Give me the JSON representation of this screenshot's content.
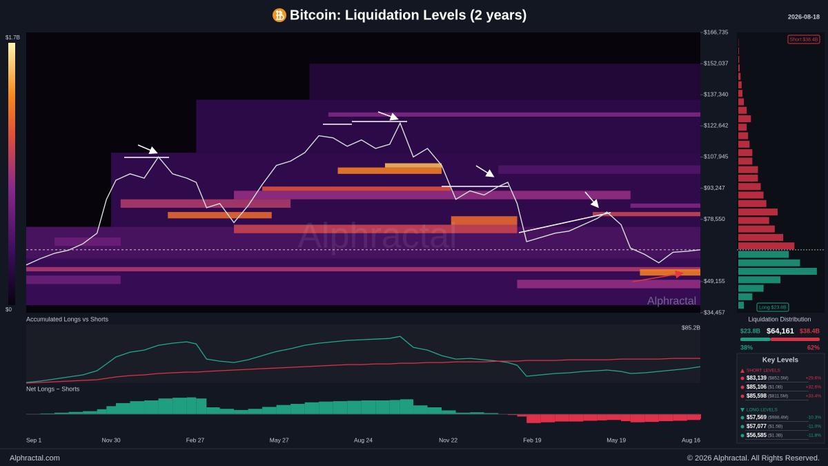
{
  "header": {
    "title": "Bitcoin: Liquidation Levels (2 years)",
    "date": "2026-08-18"
  },
  "watermark": "Alphractal",
  "footer": {
    "left": "Alphractal.com",
    "right": "© 2026 Alphractal. All Rights Reserved."
  },
  "chart_data": [
    {
      "type": "heatmap",
      "xlim": [
        0,
        714
      ],
      "ylim": [
        34457,
        166735
      ],
      "yticks": [
        {
          "value": 34457,
          "label": "$34,457"
        },
        {
          "value": 49155,
          "label": "$49,155"
        },
        {
          "value": 78550,
          "label": "$78,550"
        },
        {
          "value": 93247,
          "label": "$93,247"
        },
        {
          "value": 107945,
          "label": "$107,945"
        },
        {
          "value": 122642,
          "label": "$122,642"
        },
        {
          "value": 137340,
          "label": "$137,340"
        },
        {
          "value": 152037,
          "label": "$152,037"
        },
        {
          "value": 166735,
          "label": "$166,735"
        }
      ],
      "zlim": [
        0,
        1.7
      ],
      "zticks": [
        {
          "value": 0,
          "label": "$0"
        },
        {
          "value": 1.7,
          "label": "$1.7B"
        }
      ],
      "current_price": 64161,
      "bands": [
        {
          "x": [
            0,
            714
          ],
          "y": [
            38000,
            60000
          ],
          "z": 0.35
        },
        {
          "x": [
            0,
            714
          ],
          "y": [
            60000,
            75000
          ],
          "z": 0.45
        },
        {
          "x": [
            90,
            714
          ],
          "y": [
            75000,
            110000
          ],
          "z": 0.3
        },
        {
          "x": [
            180,
            714
          ],
          "y": [
            110000,
            135000
          ],
          "z": 0.28
        },
        {
          "x": [
            300,
            714
          ],
          "y": [
            135000,
            152000
          ],
          "z": 0.2
        },
        {
          "x": [
            500,
            714
          ],
          "y": [
            100000,
            104000
          ],
          "z": 0.45
        },
        {
          "x": [
            0,
            100
          ],
          "y": [
            48000,
            52000
          ],
          "z": 0.6
        },
        {
          "x": [
            30,
            100
          ],
          "y": [
            66000,
            70000
          ],
          "z": 0.6
        },
        {
          "x": [
            320,
            714
          ],
          "y": [
            127000,
            129000
          ],
          "z": 0.7
        },
        {
          "x": [
            640,
            714
          ],
          "y": [
            84000,
            86000
          ],
          "z": 0.7
        },
        {
          "x": [
            220,
            640
          ],
          "y": [
            88000,
            92000
          ],
          "z": 0.8
        },
        {
          "x": [
            520,
            714
          ],
          "y": [
            46000,
            50000
          ],
          "z": 0.8
        },
        {
          "x": [
            100,
            280
          ],
          "y": [
            84000,
            88000
          ],
          "z": 0.9
        },
        {
          "x": [
            0,
            714
          ],
          "y": [
            54000,
            56000
          ],
          "z": 0.9
        },
        {
          "x": [
            220,
            520
          ],
          "y": [
            72000,
            76000
          ],
          "z": 1.0
        },
        {
          "x": [
            600,
            714
          ],
          "y": [
            80000,
            82000
          ],
          "z": 1.0
        },
        {
          "x": [
            250,
            450
          ],
          "y": [
            92000,
            94000
          ],
          "z": 1.1
        },
        {
          "x": [
            150,
            260
          ],
          "y": [
            79000,
            82000
          ],
          "z": 1.2
        },
        {
          "x": [
            450,
            520
          ],
          "y": [
            76000,
            80000
          ],
          "z": 1.2
        },
        {
          "x": [
            330,
            440
          ],
          "y": [
            100000,
            103000
          ],
          "z": 1.3
        },
        {
          "x": [
            650,
            714
          ],
          "y": [
            52000,
            55000
          ],
          "z": 1.3
        },
        {
          "x": [
            380,
            440
          ],
          "y": [
            103000,
            105000
          ],
          "z": 1.5
        }
      ],
      "color": "#d7e2dc",
      "x": [
        0,
        15,
        30,
        45,
        60,
        75,
        85,
        95,
        110,
        125,
        140,
        155,
        170,
        180,
        191,
        205,
        220,
        235,
        250,
        265,
        280,
        295,
        310,
        325,
        340,
        355,
        370,
        385,
        396,
        410,
        425,
        440,
        455,
        470,
        485,
        500,
        510,
        520,
        530,
        545,
        560,
        575,
        590,
        605,
        615,
        630,
        640,
        655,
        670,
        685,
        700,
        714
      ],
      "values": [
        57000,
        60000,
        62500,
        64000,
        67000,
        72000,
        88000,
        97000,
        100000,
        98000,
        108000,
        100000,
        98000,
        96000,
        84000,
        86000,
        77000,
        85000,
        95000,
        104000,
        106000,
        110000,
        118000,
        117000,
        113000,
        116000,
        112000,
        114000,
        124000,
        108000,
        112000,
        104000,
        88000,
        92000,
        90000,
        94000,
        96000,
        86000,
        68000,
        70000,
        72000,
        73000,
        76000,
        79000,
        82000,
        76000,
        65000,
        62000,
        58000,
        63000,
        63500,
        64161
      ]
    },
    {
      "type": "line",
      "title": "Accumulated Longs vs Shorts",
      "xlim": [
        0,
        714
      ],
      "ylim": [
        0,
        85.2
      ],
      "yticks": [
        {
          "value": 85.2,
          "label": "$85.2B"
        }
      ],
      "x": [
        0,
        15,
        30,
        45,
        60,
        75,
        85,
        95,
        110,
        125,
        140,
        155,
        170,
        180,
        191,
        205,
        220,
        235,
        250,
        265,
        280,
        295,
        310,
        325,
        340,
        355,
        370,
        385,
        396,
        410,
        425,
        440,
        455,
        470,
        485,
        500,
        510,
        520,
        530,
        545,
        560,
        575,
        590,
        605,
        615,
        630,
        640,
        655,
        670,
        685,
        700,
        714
      ],
      "series": [
        {
          "color": "#22a88f",
          "values": [
            1,
            3,
            6,
            9,
            12,
            18,
            28,
            38,
            45,
            48,
            55,
            58,
            60,
            57,
            35,
            32,
            30,
            34,
            40,
            46,
            50,
            55,
            58,
            60,
            62,
            63,
            64,
            65,
            68,
            52,
            48,
            40,
            35,
            36,
            34,
            32,
            30,
            26,
            10,
            12,
            14,
            15,
            17,
            18,
            19,
            17,
            14,
            15,
            17,
            19,
            21,
            24
          ]
        },
        {
          "color": "#e0304a",
          "values": [
            0,
            1,
            2,
            3,
            4,
            5,
            7,
            9,
            11,
            12,
            14,
            15,
            16,
            16,
            17,
            18,
            19,
            20,
            21,
            22,
            23,
            24,
            25,
            26,
            27,
            27,
            28,
            28,
            29,
            29,
            30,
            30,
            31,
            31,
            31,
            32,
            32,
            32,
            33,
            33,
            33,
            34,
            34,
            34,
            34,
            35,
            35,
            35,
            35,
            36,
            36,
            36
          ]
        }
      ]
    },
    {
      "type": "area",
      "title": "Net Longs − Shorts",
      "xlim": [
        0,
        714
      ],
      "ylim": [
        -45,
        45
      ],
      "positive_color": "#1f9e80",
      "negative_color": "#e0304a",
      "xticks": [
        {
          "value": 0,
          "label": "Sep 1"
        },
        {
          "value": 90,
          "label": "Nov 30"
        },
        {
          "value": 179,
          "label": "Feb 27"
        },
        {
          "value": 268,
          "label": "May 27"
        },
        {
          "value": 357,
          "label": "Aug 24"
        },
        {
          "value": 447,
          "label": "Nov 22"
        },
        {
          "value": 536,
          "label": "Feb 19"
        },
        {
          "value": 625,
          "label": "May 19"
        },
        {
          "value": 714,
          "label": "Aug 16"
        }
      ],
      "x": [
        0,
        15,
        30,
        45,
        60,
        75,
        85,
        95,
        110,
        125,
        140,
        155,
        170,
        180,
        191,
        205,
        220,
        235,
        250,
        265,
        280,
        295,
        310,
        325,
        340,
        355,
        370,
        385,
        396,
        410,
        425,
        440,
        455,
        470,
        485,
        500,
        510,
        520,
        530,
        545,
        560,
        575,
        590,
        605,
        615,
        630,
        640,
        655,
        670,
        685,
        700,
        714
      ],
      "values": [
        1,
        2,
        4,
        6,
        8,
        13,
        21,
        29,
        34,
        36,
        41,
        43,
        44,
        41,
        18,
        14,
        11,
        14,
        19,
        24,
        27,
        31,
        33,
        34,
        35,
        36,
        36,
        37,
        39,
        23,
        18,
        10,
        4,
        5,
        3,
        0,
        -2,
        -6,
        -23,
        -21,
        -19,
        -19,
        -17,
        -16,
        -15,
        -18,
        -21,
        -20,
        -18,
        -17,
        -15,
        -12
      ]
    },
    {
      "type": "bar",
      "orientation": "horizontal",
      "title": "Liquidation Distribution",
      "ylim": [
        34457,
        166735
      ],
      "xlim": [
        0,
        3
      ],
      "short_color": "#d63347",
      "long_color": "#1f9e80",
      "y": [
        38000,
        42000,
        46000,
        50000,
        54000,
        58000,
        62000,
        66000,
        70000,
        74000,
        78000,
        82000,
        86000,
        90000,
        94000,
        98000,
        102000,
        106000,
        110000,
        114000,
        118000,
        122000,
        126000,
        130000,
        134000,
        138000,
        142000,
        146000,
        150000,
        154000,
        158000,
        162000
      ],
      "values": [
        0.2,
        0.5,
        0.9,
        1.5,
        2.8,
        2.2,
        1.8,
        2.0,
        1.6,
        1.3,
        1.1,
        1.4,
        1.0,
        0.9,
        0.8,
        0.7,
        0.7,
        0.5,
        0.5,
        0.4,
        0.35,
        0.3,
        0.45,
        0.3,
        0.2,
        0.15,
        0.12,
        0.08,
        0.05,
        0.03,
        0.02,
        0.01
      ],
      "price": {
        "value": 64161,
        "label": "$64,161"
      },
      "totals": {
        "values": [
          23.8,
          38.4
        ],
        "value_labels": [
          "$23.8B",
          "$38.4B"
        ],
        "tags": [
          "Long $23.8B",
          "Short $38.4B"
        ]
      },
      "shares": {
        "values": [
          38,
          62
        ],
        "value_labels": [
          "38%",
          "62%"
        ]
      }
    }
  ],
  "key_levels": {
    "title": "Key Levels",
    "groups": [
      {
        "label": "SHORT LEVELS",
        "rows": [
          [
            "$83,139",
            "($852.5M)",
            "+29.6%"
          ],
          [
            "$85,106",
            "($1.0B)",
            "+32.6%"
          ],
          [
            "$85,598",
            "($811.5M)",
            "+33.4%"
          ]
        ]
      },
      {
        "label": "LONG LEVELS",
        "rows": [
          [
            "$57,569",
            "($988.4M)",
            "-10.3%"
          ],
          [
            "$57,077",
            "($1.5B)",
            "-11.0%"
          ],
          [
            "$56,585",
            "($1.3B)",
            "-11.8%"
          ]
        ]
      }
    ]
  }
}
